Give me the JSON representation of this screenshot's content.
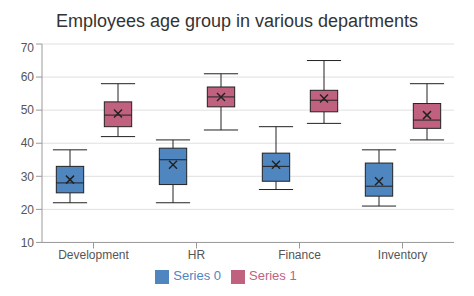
{
  "chart_data": {
    "type": "box",
    "title": "Employees age group in various departments",
    "categories": [
      "Development",
      "HR",
      "Finance",
      "Inventory"
    ],
    "series": [
      {
        "name": "Series 0",
        "color": "#4f86c0",
        "min": [
          22,
          22,
          26,
          21
        ],
        "q1": [
          25,
          27.5,
          28.5,
          24
        ],
        "median": [
          28,
          35,
          33,
          27
        ],
        "q3": [
          33,
          38.5,
          37,
          34
        ],
        "max": [
          38,
          41,
          45,
          38
        ],
        "mean": [
          29,
          33.5,
          33.5,
          28.5
        ]
      },
      {
        "name": "Series 1",
        "color": "#c0627f",
        "min": [
          42,
          44,
          46,
          41
        ],
        "q1": [
          45,
          51,
          49.5,
          44.5
        ],
        "median": [
          48.5,
          54,
          53,
          47
        ],
        "q3": [
          52.5,
          57,
          56,
          52
        ],
        "max": [
          58,
          61,
          65,
          58
        ],
        "mean": [
          49,
          54,
          53.5,
          48.5
        ]
      }
    ],
    "ylim": [
      10,
      70
    ],
    "yticks": [
      10,
      20,
      30,
      40,
      50,
      60,
      70
    ],
    "grid": true,
    "legend": "bottom",
    "marker": "x"
  }
}
